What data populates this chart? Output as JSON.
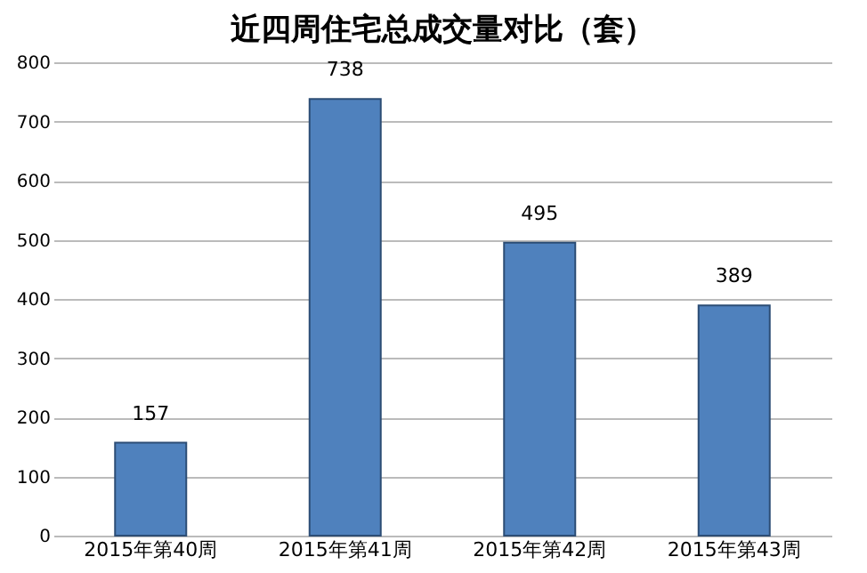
{
  "chart_data": {
    "type": "bar",
    "title": "近四周住宅总成交量对比（套）",
    "categories": [
      "2015年第40周",
      "2015年第41周",
      "2015年第42周",
      "2015年第43周"
    ],
    "values": [
      157,
      738,
      495,
      389
    ],
    "color": "#4f81bd",
    "ylim": [
      0,
      800
    ],
    "yticks": [
      0,
      100,
      200,
      300,
      400,
      500,
      600,
      700,
      800
    ],
    "grid": "y",
    "data_labels": true
  }
}
